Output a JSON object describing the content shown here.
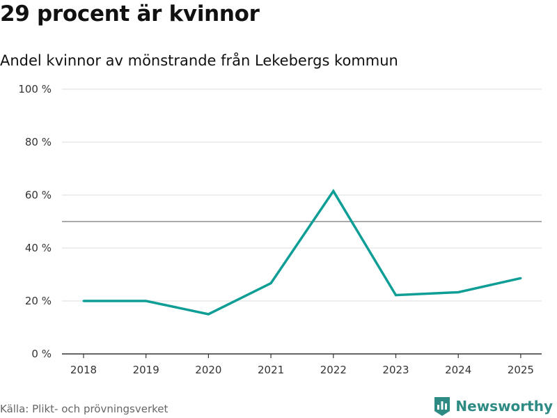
{
  "header": {
    "title": "29 procent är kvinnor",
    "subtitle": "Andel kvinnor av mönstrande från Lekebergs kommun"
  },
  "footer": {
    "source": "Källa: Plikt- och prövningsverket",
    "brand": "Newsworthy",
    "brand_icon": "bar-chart-shield-icon"
  },
  "colors": {
    "line": "#0f9e96",
    "grid": "#dddddd",
    "reference": "#777777",
    "axis": "#333333",
    "brand": "#2e8b84"
  },
  "chart_data": {
    "type": "line",
    "title": "29 procent är kvinnor",
    "subtitle": "Andel kvinnor av mönstrande från Lekebergs kommun",
    "xlabel": "",
    "ylabel": "",
    "categories": [
      "2018",
      "2019",
      "2020",
      "2021",
      "2022",
      "2023",
      "2024",
      "2025"
    ],
    "series": [
      {
        "name": "Andel kvinnor",
        "values": [
          20,
          20,
          15,
          26.7,
          61.5,
          22.2,
          23.3,
          28.6
        ]
      }
    ],
    "ylim": [
      0,
      100
    ],
    "yticks": [
      0,
      20,
      40,
      60,
      80,
      100
    ],
    "ytick_labels": [
      "0 %",
      "20 %",
      "40 %",
      "60 %",
      "80 %",
      "100 %"
    ],
    "reference_line": 50,
    "grid": true,
    "legend": "none"
  }
}
